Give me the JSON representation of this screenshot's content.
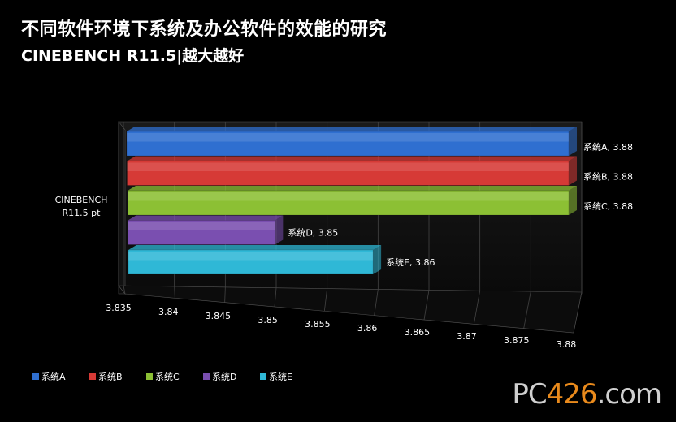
{
  "header": {
    "title": "不同软件环境下系统及办公软件的效能的研究",
    "subtitle": "CINEBENCH R11.5|越大越好"
  },
  "chart_data": {
    "type": "bar",
    "orientation": "horizontal",
    "title": "不同软件环境下系统及办公软件的效能的研究",
    "subtitle": "CINEBENCH R11.5|越大越好",
    "category_label": "CINEBENCH R11.5 pt",
    "xlim": [
      3.835,
      3.88
    ],
    "x_ticks": [
      "3.835",
      "3.84",
      "3.845",
      "3.85",
      "3.855",
      "3.86",
      "3.865",
      "3.87",
      "3.875",
      "3.88"
    ],
    "grid": true,
    "legend_position": "bottom-left",
    "series": [
      {
        "name": "系统A",
        "value": 3.88,
        "label": "系统A, 3.88",
        "color": "#2f6fd0"
      },
      {
        "name": "系统B",
        "value": 3.88,
        "label": "系统B, 3.88",
        "color": "#d63a36"
      },
      {
        "name": "系统C",
        "value": 3.88,
        "label": "系统C, 3.88",
        "color": "#8cc034"
      },
      {
        "name": "系统D",
        "value": 3.85,
        "label": "系统D, 3.85",
        "color": "#7a4fb0"
      },
      {
        "name": "系统E",
        "value": 3.86,
        "label": "系统E, 3.86",
        "color": "#2fb8d6"
      }
    ]
  },
  "watermark": {
    "text_a": "PC",
    "text_b": "426",
    "text_c": ".com"
  }
}
